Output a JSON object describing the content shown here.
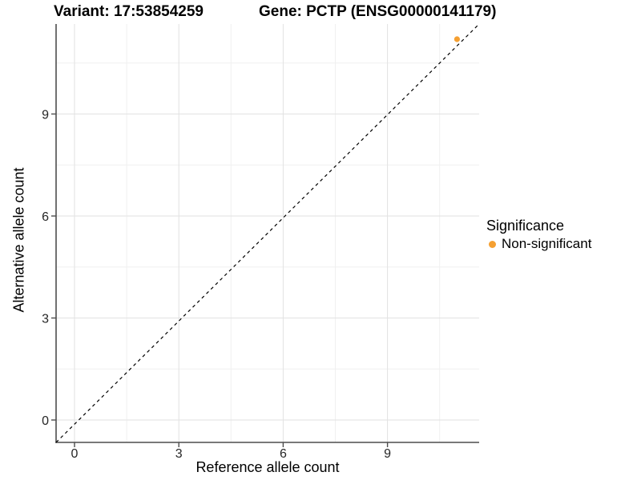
{
  "titles": {
    "variant": "Variant: 17:53854259",
    "gene": "Gene: PCTP (ENSG00000141179)"
  },
  "chart_data": {
    "type": "scatter",
    "xlabel": "Reference allele count",
    "ylabel": "Alternative allele count",
    "x_ticks": [
      0,
      3,
      6,
      9
    ],
    "y_ticks": [
      0,
      3,
      6,
      9
    ],
    "x_minor_ticks": [
      1.5,
      4.5,
      7.5,
      10.5
    ],
    "y_minor_ticks": [
      1.5,
      4.5,
      7.5,
      10.5
    ],
    "xlim": [
      -0.55,
      11.6
    ],
    "ylim": [
      -0.65,
      11.65
    ],
    "grid": true,
    "identity_line": {
      "slope": 1,
      "intercept": 0,
      "linetype": "dashed",
      "color": "#000000"
    },
    "series": [
      {
        "name": "Non-significant",
        "color": "#F5A032",
        "points": [
          {
            "x": 11,
            "y": 11.2
          }
        ]
      }
    ],
    "legend": {
      "title": "Significance",
      "position": "right",
      "items": [
        {
          "label": "Non-significant",
          "color": "#F5A032"
        }
      ]
    }
  },
  "colors": {
    "background": "#FFFFFF",
    "grid_major": "#E2E2E2",
    "grid_minor": "#F0F0F0",
    "axis_line": "#4D4D4D",
    "tick_text": "#262626",
    "point": "#F5A032"
  }
}
